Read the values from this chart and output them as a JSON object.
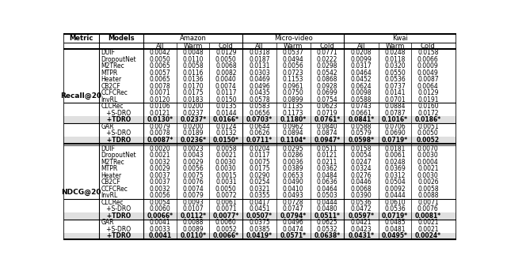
{
  "models_recall": [
    "DUIF",
    "DropoutNet",
    "M2TRec",
    "MTPR",
    "Heater",
    "CB2CF",
    "CCFCRec",
    "InvRL",
    "CLCRec",
    "+S-DRO",
    "+TDRO",
    "GAR",
    "+S-DRO",
    "+TDRO"
  ],
  "models_ndcg": [
    "DUIF",
    "DropoutNet",
    "M2TRec",
    "MTPR",
    "Heater",
    "CB2CF",
    "CCFCRec",
    "InvRL",
    "CLCRec",
    "+S-DRO",
    "+TDRO",
    "GAR",
    "+S-DRO",
    "+TDRO"
  ],
  "recall_data": [
    [
      "0.0042",
      "0.0048",
      "0.0129",
      "0.0318",
      "0.0537",
      "0.0771",
      "0.0208",
      "0.0248",
      "0.0158"
    ],
    [
      "0.0050",
      "0.0110",
      "0.0050",
      "0.0187",
      "0.0494",
      "0.0222",
      "0.0099",
      "0.0118",
      "0.0066"
    ],
    [
      "0.0065",
      "0.0058",
      "0.0068",
      "0.0131",
      "0.0056",
      "0.0298",
      "0.0317",
      "0.0320",
      "0.0009"
    ],
    [
      "0.0057",
      "0.0116",
      "0.0082",
      "0.0303",
      "0.0723",
      "0.0542",
      "0.0464",
      "0.0550",
      "0.0049"
    ],
    [
      "0.0065",
      "0.0136",
      "0.0040",
      "0.0469",
      "0.1153",
      "0.0868",
      "0.0452",
      "0.0536",
      "0.0087"
    ],
    [
      "0.0078",
      "0.0170",
      "0.0074",
      "0.0496",
      "0.0961",
      "0.0928",
      "0.0624",
      "0.0737",
      "0.0064"
    ],
    [
      "0.0071",
      "0.0175",
      "0.0117",
      "0.0435",
      "0.0750",
      "0.0699",
      "0.0098",
      "0.0141",
      "0.0129"
    ],
    [
      "0.0120",
      "0.0183",
      "0.0150",
      "0.0578",
      "0.0899",
      "0.0754",
      "0.0588",
      "0.0701",
      "0.0191"
    ],
    [
      "0.0106",
      "0.0200",
      "0.0135",
      "0.0583",
      "0.1135",
      "0.0623",
      "0.0743",
      "0.0884",
      "0.0160"
    ],
    [
      "0.0121",
      "0.0237",
      "0.0144",
      "0.0656",
      "0.1173",
      "0.0719",
      "0.0661",
      "0.0787",
      "0.0172"
    ],
    [
      "0.0130*",
      "0.0237*",
      "0.0166*",
      "0.0703*",
      "0.1180*",
      "0.0761*",
      "0.0841*",
      "0.1016*",
      "0.0186*"
    ],
    [
      "0.0079",
      "0.0200",
      "0.0124",
      "0.0644",
      "0.0962",
      "0.0840",
      "0.0588",
      "0.0706",
      "0.0051"
    ],
    [
      "0.0078",
      "0.0189",
      "0.0132",
      "0.0626",
      "0.0894",
      "0.0874",
      "0.0579",
      "0.0690",
      "0.0050"
    ],
    [
      "0.0087*",
      "0.0236*",
      "0.0150*",
      "0.0711*",
      "0.1104*",
      "0.0947*",
      "0.0598*",
      "0.0719*",
      "0.0052"
    ]
  ],
  "ndcg_data": [
    [
      "0.0020",
      "0.0023",
      "0.0058",
      "0.0204",
      "0.0295",
      "0.0511",
      "0.0158",
      "0.0181",
      "0.0070"
    ],
    [
      "0.0021",
      "0.0043",
      "0.0021",
      "0.0117",
      "0.0286",
      "0.0121",
      "0.0054",
      "0.0061",
      "0.0030"
    ],
    [
      "0.0032",
      "0.0029",
      "0.0030",
      "0.0075",
      "0.0036",
      "0.0211",
      "0.0247",
      "0.0248",
      "0.0004"
    ],
    [
      "0.0029",
      "0.0056",
      "0.0030",
      "0.0175",
      "0.0389",
      "0.0362",
      "0.0324",
      "0.0369",
      "0.0021"
    ],
    [
      "0.0037",
      "0.0075",
      "0.0015",
      "0.0290",
      "0.0653",
      "0.0484",
      "0.0276",
      "0.0312",
      "0.0030"
    ],
    [
      "0.0037",
      "0.0076",
      "0.0031",
      "0.0254",
      "0.0490",
      "0.0636",
      "0.0446",
      "0.0504",
      "0.0026"
    ],
    [
      "0.0032",
      "0.0074",
      "0.0050",
      "0.0321",
      "0.0410",
      "0.0464",
      "0.0068",
      "0.0092",
      "0.0058"
    ],
    [
      "0.0056",
      "0.0079",
      "0.0072",
      "0.0355",
      "0.0493",
      "0.0503",
      "0.0390",
      "0.0444",
      "0.0088"
    ],
    [
      "0.0054",
      "0.0093",
      "0.0061",
      "0.0417",
      "0.0728",
      "0.0444",
      "0.0536",
      "0.0610",
      "0.0071"
    ],
    [
      "0.0060",
      "0.0107",
      "0.0071",
      "0.0451",
      "0.0747",
      "0.0480",
      "0.0472",
      "0.0536",
      "0.0076"
    ],
    [
      "0.0066*",
      "0.0112*",
      "0.0077*",
      "0.0507*",
      "0.0794*",
      "0.0511*",
      "0.0597*",
      "0.0719*",
      "0.0081*"
    ],
    [
      "0.0041",
      "0.0088",
      "0.0060",
      "0.0375",
      "0.0496",
      "0.0625",
      "0.0421",
      "0.0485",
      "0.0021"
    ],
    [
      "0.0033",
      "0.0089",
      "0.0052",
      "0.0385",
      "0.0474",
      "0.0532",
      "0.0423",
      "0.0481",
      "0.0021"
    ],
    [
      "0.0041",
      "0.0110*",
      "0.0066*",
      "0.0419*",
      "0.0571*",
      "0.0638*",
      "0.0431*",
      "0.0495*",
      "0.0024*"
    ]
  ],
  "bold_rows_recall": [
    10,
    13
  ],
  "bold_rows_ndcg": [
    10,
    13
  ],
  "highlight_rows_recall": [
    10,
    13
  ],
  "highlight_rows_ndcg": [
    10,
    13
  ],
  "bg_color": "#ffffff",
  "highlight_color": "#e0e0e0",
  "font_size": 5.5,
  "header_font_size": 6.0
}
